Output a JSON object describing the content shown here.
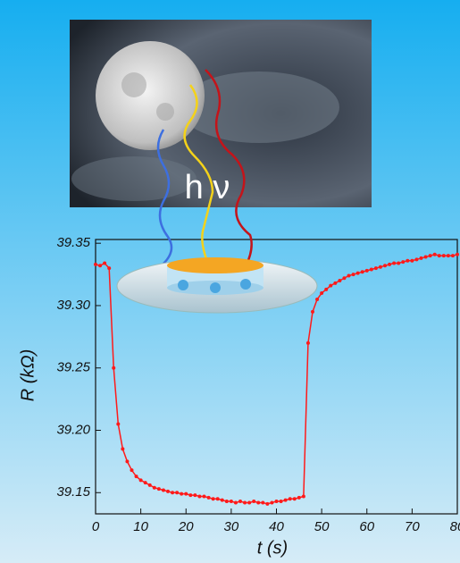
{
  "chart_data": {
    "type": "line",
    "annotation": "h ν",
    "x_label": "t (s)",
    "y_label": "R (kΩ)",
    "x": [
      0,
      1,
      2,
      3,
      4,
      5,
      6,
      7,
      8,
      9,
      10,
      11,
      12,
      13,
      14,
      15,
      16,
      17,
      18,
      19,
      20,
      21,
      22,
      23,
      24,
      25,
      26,
      27,
      28,
      29,
      30,
      31,
      32,
      33,
      34,
      35,
      36,
      37,
      38,
      39,
      40,
      41,
      42,
      43,
      44,
      45,
      46,
      47,
      48,
      49,
      50,
      51,
      52,
      53,
      54,
      55,
      56,
      57,
      58,
      59,
      60,
      61,
      62,
      63,
      64,
      65,
      66,
      67,
      68,
      69,
      70,
      71,
      72,
      73,
      74,
      75,
      76,
      77,
      78,
      79,
      80
    ],
    "series": [
      {
        "color": "#ff1a1a",
        "values": [
          39.333,
          39.332,
          39.334,
          39.33,
          39.25,
          39.205,
          39.185,
          39.175,
          39.168,
          39.163,
          39.16,
          39.158,
          39.156,
          39.154,
          39.153,
          39.152,
          39.151,
          39.15,
          39.15,
          39.149,
          39.149,
          39.148,
          39.148,
          39.147,
          39.147,
          39.146,
          39.145,
          39.145,
          39.144,
          39.143,
          39.143,
          39.142,
          39.143,
          39.142,
          39.142,
          39.143,
          39.142,
          39.142,
          39.141,
          39.142,
          39.143,
          39.143,
          39.144,
          39.145,
          39.145,
          39.146,
          39.147,
          39.27,
          39.295,
          39.305,
          39.31,
          39.313,
          39.316,
          39.318,
          39.32,
          39.322,
          39.324,
          39.325,
          39.326,
          39.327,
          39.328,
          39.329,
          39.33,
          39.331,
          39.332,
          39.333,
          39.334,
          39.334,
          39.335,
          39.336,
          39.336,
          39.337,
          39.338,
          39.339,
          39.34,
          39.341,
          39.34,
          39.34,
          39.34,
          39.34,
          39.341
        ]
      }
    ],
    "xlim": [
      0,
      80
    ],
    "xticks": [
      0,
      10,
      20,
      30,
      40,
      50,
      60,
      70,
      80
    ],
    "ylim": [
      39.133,
      39.353
    ],
    "yticks": [
      39.15,
      {
        "value": 39.2,
        "label": "39.20"
      },
      39.25,
      {
        "value": 39.3,
        "label": "39.30"
      },
      39.35
    ]
  }
}
